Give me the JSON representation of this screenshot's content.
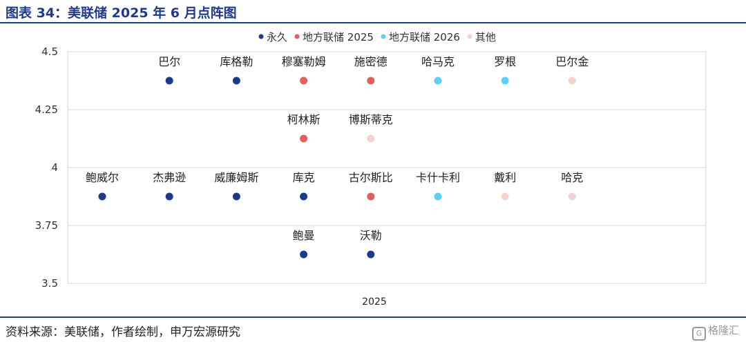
{
  "figure": {
    "title": "图表 34：美联储 2025 年 6 月点阵图",
    "source": "资料来源：美联储，作者绘制，申万宏源研究",
    "watermark": "格隆汇"
  },
  "chart_data": {
    "type": "scatter",
    "title": "",
    "xlabel": "",
    "ylabel": "",
    "x_category": "2025",
    "ylim": [
      3.5,
      4.5
    ],
    "yticks": [
      3.5,
      3.75,
      4,
      4.25,
      4.5
    ],
    "ytick_labels": [
      "3.5",
      "3.75",
      "4",
      "4.25",
      "4.5"
    ],
    "grid": true,
    "legend_position": "top-center",
    "series": [
      {
        "name": "永久",
        "color": "#1b3a8c"
      },
      {
        "name": "地方联储 2025",
        "color": "#e0605c"
      },
      {
        "name": "地方联储 2026",
        "color": "#5fd0f5"
      },
      {
        "name": "其他",
        "color": "#f5d3d3"
      }
    ],
    "rows": [
      {
        "y": 4.375,
        "points": [
          {
            "label": "巴尔",
            "series": 0
          },
          {
            "label": "库格勒",
            "series": 0
          },
          {
            "label": "穆塞勒姆",
            "series": 1
          },
          {
            "label": "施密德",
            "series": 1
          },
          {
            "label": "哈马克",
            "series": 2
          },
          {
            "label": "罗根",
            "series": 2
          },
          {
            "label": "巴尔金",
            "series": 3
          }
        ]
      },
      {
        "y": 4.125,
        "points": [
          {
            "label": "柯林斯",
            "series": 1
          },
          {
            "label": "博斯蒂克",
            "series": 3
          }
        ]
      },
      {
        "y": 3.875,
        "points": [
          {
            "label": "鲍威尔",
            "series": 0
          },
          {
            "label": "杰弗逊",
            "series": 0
          },
          {
            "label": "威廉姆斯",
            "series": 0
          },
          {
            "label": "库克",
            "series": 0
          },
          {
            "label": "古尔斯比",
            "series": 1
          },
          {
            "label": "卡什卡利",
            "series": 2
          },
          {
            "label": "戴利",
            "series": 3
          },
          {
            "label": "哈克",
            "series": 3
          }
        ]
      },
      {
        "y": 3.625,
        "points": [
          {
            "label": "鲍曼",
            "series": 0
          },
          {
            "label": "沃勒",
            "series": 0
          }
        ]
      }
    ]
  }
}
